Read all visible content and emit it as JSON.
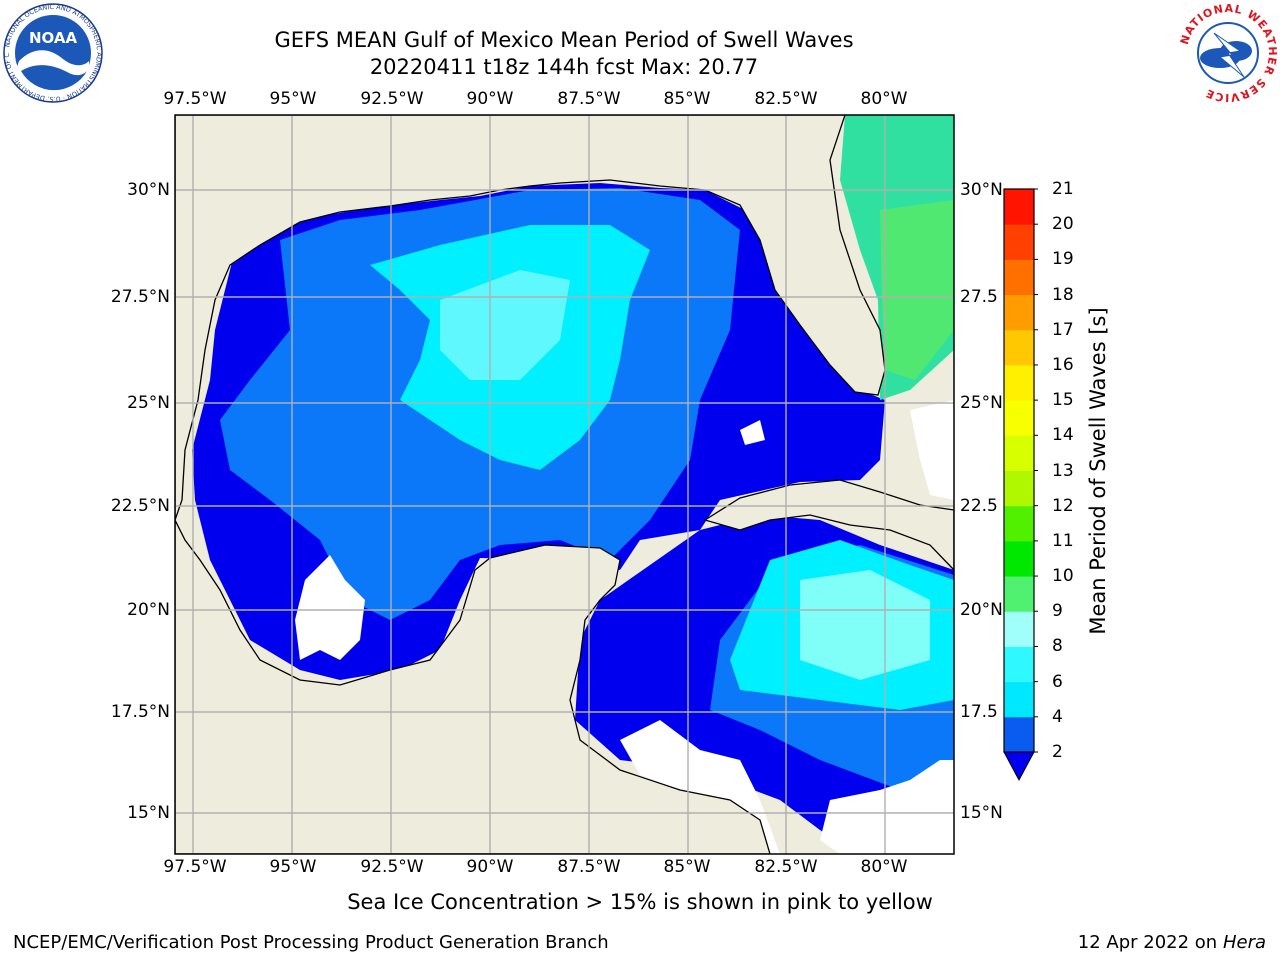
{
  "title": {
    "line1": "GEFS MEAN Gulf of Mexico Mean Period of Swell Waves",
    "line2": "20220411 t18z 144h fcst   Max: 20.77"
  },
  "map": {
    "lon_labels": [
      "97.5°W",
      "95°W",
      "92.5°W",
      "90°W",
      "87.5°W",
      "85°W",
      "82.5°W",
      "80°W"
    ],
    "lat_labels_left": [
      "30°N",
      "27.5°N",
      "25°N",
      "22.5°N",
      "20°N",
      "17.5°N",
      "15°N"
    ],
    "lat_labels_right": [
      "30°N",
      "27.5",
      "25°N",
      "22.5",
      "20°N",
      "17.5",
      "15°N"
    ],
    "land_color": "#eeecdc",
    "grid_color": "#b0b0b0"
  },
  "colorbar": {
    "label": "Mean Period of Swell Waves [s]",
    "ticks": [
      "2",
      "4",
      "6",
      "8",
      "9",
      "10",
      "11",
      "12",
      "13",
      "14",
      "15",
      "16",
      "17",
      "18",
      "19",
      "20",
      "21"
    ],
    "colors": [
      "#0a5cf0",
      "#00e8ff",
      "#30f8ff",
      "#a0fff8",
      "#50f070",
      "#00e800",
      "#50f000",
      "#b0f800",
      "#d8ff00",
      "#f8ff00",
      "#fff000",
      "#ffc800",
      "#ff9c00",
      "#ff7000",
      "#ff4000",
      "#ff1400"
    ],
    "extend_color": "#0000ee"
  },
  "logos": {
    "noaa_text": "NOAA",
    "noaa_ring": "NATIONAL OCEANIC AND ATMOSPHERIC ADMINISTRATION · U.S. DEPARTMENT OF COMMERCE",
    "nws_ring": "NATIONAL WEATHER SERVICE"
  },
  "footer": {
    "note": "Sea Ice Concentration > 15% is shown in pink to yellow",
    "left": "NCEP/EMC/Verification Post Processing Product Generation Branch",
    "right_prefix": "12 Apr 2022 on ",
    "right_host": "Hera"
  }
}
